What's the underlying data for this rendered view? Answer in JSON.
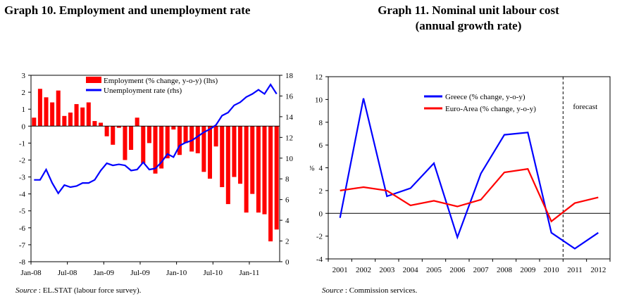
{
  "graph10": {
    "title": "Graph 10. Employment and unemployment rate",
    "source_label": "Source",
    "source_text": ": EL.STAT (labour force survey).",
    "chart_data": {
      "type": "bar+line",
      "categories": [
        "Jan-08",
        "Feb-08",
        "Mar-08",
        "Apr-08",
        "May-08",
        "Jun-08",
        "Jul-08",
        "Aug-08",
        "Sep-08",
        "Oct-08",
        "Nov-08",
        "Dec-08",
        "Jan-09",
        "Feb-09",
        "Mar-09",
        "Apr-09",
        "May-09",
        "Jun-09",
        "Jul-09",
        "Aug-09",
        "Sep-09",
        "Oct-09",
        "Nov-09",
        "Dec-09",
        "Jan-10",
        "Feb-10",
        "Mar-10",
        "Apr-10",
        "May-10",
        "Jun-10",
        "Jul-10",
        "Aug-10",
        "Sep-10",
        "Oct-10",
        "Nov-10",
        "Dec-10",
        "Jan-11",
        "Feb-11",
        "Mar-11",
        "Apr-11",
        "May-11"
      ],
      "x_tick_labels": [
        "Jan-08",
        "Jul-08",
        "Jan-09",
        "Jul-09",
        "Jan-10",
        "Jul-10",
        "Jan-11"
      ],
      "series": [
        {
          "name": "Employment (% change, y-o-y) (lhs)",
          "axis": "left",
          "kind": "bar",
          "color": "#ff0000",
          "values": [
            0.5,
            2.2,
            1.7,
            1.4,
            2.1,
            0.6,
            0.8,
            1.3,
            1.1,
            1.4,
            0.3,
            0.2,
            -0.6,
            -1.1,
            -0.1,
            -2.0,
            -1.4,
            0.5,
            -2.2,
            -1.0,
            -2.8,
            -2.5,
            -1.9,
            -0.2,
            -1.7,
            -1.0,
            -1.5,
            -1.6,
            -2.7,
            -3.1,
            -1.2,
            -3.6,
            -4.6,
            -3.0,
            -3.4,
            -5.1,
            -4.0,
            -5.1,
            -5.2,
            -6.8,
            -6.1
          ]
        },
        {
          "name": "Unemployment rate (rhs)",
          "axis": "right",
          "kind": "line",
          "color": "#0000ff",
          "values": [
            7.9,
            7.9,
            8.9,
            7.6,
            6.6,
            7.4,
            7.2,
            7.3,
            7.6,
            7.6,
            7.9,
            8.8,
            9.5,
            9.3,
            9.4,
            9.3,
            8.8,
            8.9,
            9.6,
            8.9,
            9.0,
            9.6,
            10.4,
            10.1,
            11.2,
            11.5,
            11.7,
            12.1,
            12.5,
            12.8,
            13.2,
            14.1,
            14.4,
            15.1,
            15.4,
            15.9,
            16.2,
            16.6,
            16.2,
            17.1,
            16.2
          ]
        }
      ],
      "ylim_left": [
        -8,
        3
      ],
      "yticks_left": [
        -8,
        -7,
        -6,
        -5,
        -4,
        -3,
        -2,
        -1,
        0,
        1,
        2,
        3
      ],
      "ylim_right": [
        0,
        18
      ],
      "yticks_right": [
        0,
        2,
        4,
        6,
        8,
        10,
        12,
        14,
        16,
        18
      ],
      "legend_position": "top-center",
      "grid": false
    }
  },
  "graph11": {
    "title_line1": "Graph 11. Nominal unit labour cost",
    "title_line2": "(annual growth rate)",
    "source_label": "Source",
    "source_text": ":   Commission services.",
    "chart_data": {
      "type": "line",
      "x": [
        "2001",
        "2002",
        "2003",
        "2004",
        "2005",
        "2006",
        "2007",
        "2008",
        "2009",
        "2010",
        "2011",
        "2012"
      ],
      "ylabel": "%",
      "ylim": [
        -4,
        12
      ],
      "yticks": [
        -4,
        -2,
        0,
        2,
        4,
        6,
        8,
        10,
        12
      ],
      "annotation": "forecast",
      "forecast_divider_between": [
        "2010",
        "2011"
      ],
      "series": [
        {
          "name": "Greece (% change, y-o-y)",
          "color": "#0000ff",
          "values": [
            -0.4,
            10.1,
            1.5,
            2.2,
            4.4,
            -2.1,
            3.5,
            6.9,
            7.1,
            -1.7,
            -3.1,
            -1.7
          ]
        },
        {
          "name": "Euro-Area (% change, y-o-y)",
          "color": "#ff0000",
          "values": [
            2.0,
            2.3,
            2.0,
            0.7,
            1.1,
            0.6,
            1.2,
            3.6,
            3.9,
            -0.7,
            0.9,
            1.4
          ]
        }
      ],
      "legend_position": "top-left",
      "grid": false
    }
  }
}
